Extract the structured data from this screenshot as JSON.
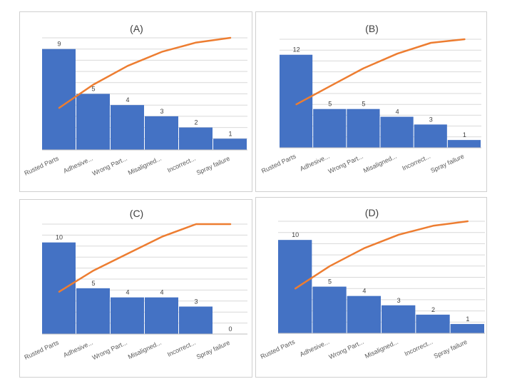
{
  "colors": {
    "bar": "#4472C4",
    "line": "#ED7D31"
  },
  "chart_data": [
    {
      "type": "bar",
      "title": "(A)",
      "categories": [
        "Rusted Parts",
        "Adhesive...",
        "Wrong Part...",
        "Misaligned...",
        "Incorrect...",
        "Spray failure"
      ],
      "values": [
        9,
        5,
        4,
        3,
        2,
        1
      ],
      "value_labels": [
        "9",
        "5",
        "4",
        "3",
        "2",
        "1"
      ],
      "ylim": [
        0,
        10
      ],
      "cumulative_percent": [
        37.5,
        58.3,
        75.0,
        87.5,
        95.8,
        100.0
      ],
      "grid": true
    },
    {
      "type": "bar",
      "title": "(B)",
      "categories": [
        "Rusted Parts",
        "Adhesive...",
        "Wrong Part...",
        "Misaligned...",
        "Incorrect...",
        "Spray failure"
      ],
      "values": [
        12,
        5,
        5,
        4,
        3,
        1
      ],
      "value_labels": [
        "12",
        "5",
        "5",
        "4",
        "3",
        "1"
      ],
      "ylim": [
        0,
        14
      ],
      "cumulative_percent": [
        40.0,
        56.7,
        73.3,
        86.7,
        96.7,
        100.0
      ],
      "grid": true
    },
    {
      "type": "bar",
      "title": "(C)",
      "categories": [
        "Rusted Parts",
        "Adhesive...",
        "Wrong Part...",
        "Misaligned...",
        "Incorrect...",
        "Spray failure"
      ],
      "values": [
        10,
        5,
        4,
        4,
        3,
        0
      ],
      "value_labels": [
        "10",
        "5",
        "4",
        "4",
        "3",
        "0"
      ],
      "ylim": [
        0,
        12
      ],
      "cumulative_percent": [
        38.5,
        57.7,
        73.1,
        88.5,
        100.0,
        100.0
      ],
      "grid": true
    },
    {
      "type": "bar",
      "title": "(D)",
      "categories": [
        "Rusted Parts",
        "Adhesive...",
        "Wrong Part...",
        "Misaligned...",
        "Incorrect...",
        "Spray failure"
      ],
      "values": [
        10,
        5,
        4,
        3,
        2,
        1
      ],
      "value_labels": [
        "10",
        "5",
        "4",
        "3",
        "2",
        "1"
      ],
      "ylim": [
        0,
        12
      ],
      "cumulative_percent": [
        40.0,
        60.0,
        76.0,
        88.0,
        96.0,
        100.0
      ],
      "grid": true
    }
  ]
}
